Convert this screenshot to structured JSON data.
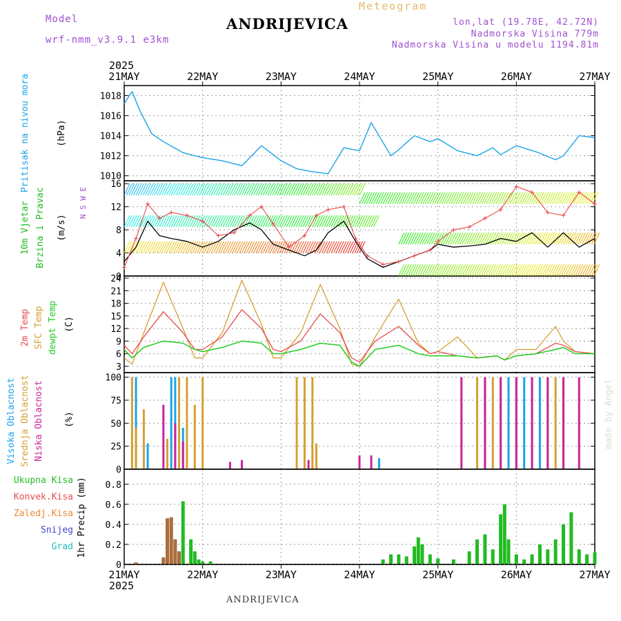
{
  "header": {
    "title": "ANDRIJEVICA",
    "subtitle": "Meteogram",
    "model_label": "Model",
    "model_name": "wrf-nmm_v3.9.1 e3km",
    "location": "lon,lat (19.78E, 42.72N)",
    "elevation": "Nadmorska Visina 779m",
    "model_elevation": "Nadmorska Visina u modelu 1194.81m",
    "footer": "ANDRIJEVICA",
    "credit": "made by Angel"
  },
  "colors": {
    "pressure": "#1aa3e8",
    "wind_label": "#22bb22",
    "wind_speed": "#000000",
    "gust": "#e84a4a",
    "temp2m": "#e84a4a",
    "sfc_temp": "#d4a030",
    "dewpt": "#22cc22",
    "cloud_high": "#1aa3e8",
    "cloud_mid": "#d4a030",
    "cloud_low": "#cc2299",
    "precip_total": "#22bb22",
    "precip_conv": "#e84a4a",
    "freezing_rain": "#ee8833",
    "snow": "#4444cc",
    "hail": "#22bbbb",
    "purple": "#a050d0"
  },
  "chart_data": [
    {
      "type": "line",
      "panel": "pressure",
      "year": "2025",
      "x_ticks": [
        "21MAY",
        "22MAY",
        "23MAY",
        "24MAY",
        "25MAY",
        "26MAY",
        "27MAY"
      ],
      "ylabel_side": "Pritisak na nivou mora",
      "unit": "(hPa)",
      "ylim": [
        1009.5,
        1019
      ],
      "y_ticks": [
        1010,
        1012,
        1014,
        1016,
        1018
      ],
      "series": [
        {
          "name": "Pritisak na nivou mora",
          "x_days": [
            0,
            0.1,
            0.2,
            0.35,
            0.5,
            0.75,
            1.0,
            1.25,
            1.5,
            1.75,
            2.0,
            2.2,
            2.4,
            2.6,
            2.8,
            3.0,
            3.15,
            3.4,
            3.5,
            3.7,
            3.9,
            4.0,
            4.25,
            4.5,
            4.7,
            4.8,
            5.0,
            5.25,
            5.5,
            5.6,
            5.75,
            5.8,
            6.0
          ],
          "values": [
            1017.2,
            1018.4,
            1016.5,
            1014.2,
            1013.4,
            1012.3,
            1011.8,
            1011.5,
            1011.0,
            1013.0,
            1011.5,
            1010.7,
            1010.4,
            1010.2,
            1012.8,
            1012.5,
            1015.3,
            1012.0,
            1012.6,
            1014.0,
            1013.4,
            1013.7,
            1012.5,
            1012.0,
            1012.8,
            1012.1,
            1013.0,
            1012.4,
            1011.6,
            1012.0,
            1013.5,
            1014.0,
            1013.8
          ]
        }
      ]
    },
    {
      "type": "line",
      "panel": "wind",
      "ylabel_side1": "10m Vjetar",
      "ylabel_side2": "Brzina i Pravac",
      "unit": "(m/s)",
      "compass_label": "N S W E",
      "ylim": [
        0,
        16.5
      ],
      "y_ticks": [
        0,
        4,
        8,
        12,
        16
      ],
      "series": [
        {
          "name": "Wind speed",
          "x_days": [
            0,
            0.15,
            0.3,
            0.45,
            0.6,
            0.8,
            1.0,
            1.2,
            1.4,
            1.6,
            1.75,
            1.9,
            2.1,
            2.3,
            2.45,
            2.6,
            2.8,
            2.95,
            3.1,
            3.3,
            3.5,
            3.7,
            3.9,
            4.0,
            4.2,
            4.4,
            4.6,
            4.8,
            5.0,
            5.2,
            5.4,
            5.6,
            5.8,
            6.0
          ],
          "values": [
            2.5,
            5.0,
            9.5,
            7.0,
            6.5,
            6.0,
            5.0,
            6.0,
            8.0,
            9.2,
            8.0,
            5.5,
            4.5,
            3.5,
            4.5,
            7.5,
            9.5,
            6.0,
            3.0,
            1.5,
            2.5,
            3.5,
            4.5,
            5.5,
            5.0,
            5.2,
            5.5,
            6.5,
            6.0,
            7.5,
            5.0,
            7.5,
            5.0,
            6.5
          ]
        },
        {
          "name": "Gust",
          "x_days": [
            0,
            0.15,
            0.3,
            0.45,
            0.6,
            0.8,
            1.0,
            1.2,
            1.4,
            1.6,
            1.75,
            1.9,
            2.1,
            2.3,
            2.45,
            2.6,
            2.8,
            2.95,
            3.1,
            3.3,
            3.5,
            3.7,
            3.9,
            4.0,
            4.2,
            4.4,
            4.6,
            4.8,
            5.0,
            5.2,
            5.4,
            5.6,
            5.8,
            6.0
          ],
          "values": [
            1.5,
            6.5,
            12.5,
            10.0,
            11.0,
            10.5,
            9.5,
            7.0,
            7.5,
            10.5,
            12.0,
            9.0,
            5.0,
            7.0,
            10.5,
            11.5,
            12.0,
            6.5,
            3.5,
            2.0,
            2.5,
            3.5,
            4.5,
            6.0,
            8.0,
            8.5,
            10.0,
            11.5,
            15.5,
            14.5,
            11.0,
            10.5,
            14.5,
            12.5
          ]
        }
      ]
    },
    {
      "type": "line",
      "panel": "temperature",
      "ylabel_side": [
        "2m Temp",
        "SFC Temp",
        "dewpt Temp"
      ],
      "unit": "(C)",
      "ylim": [
        1.5,
        24.5
      ],
      "y_ticks": [
        3,
        6,
        9,
        12,
        15,
        18,
        21,
        24
      ],
      "series": [
        {
          "name": "2m Temp",
          "x_days": [
            0,
            0.1,
            0.25,
            0.5,
            0.75,
            0.9,
            1.0,
            1.25,
            1.5,
            1.75,
            1.9,
            2.0,
            2.25,
            2.5,
            2.75,
            2.9,
            3.0,
            3.2,
            3.5,
            3.75,
            3.9,
            4.0,
            4.25,
            4.5,
            4.75,
            4.85,
            5.0,
            5.25,
            5.5,
            5.6,
            5.75,
            6.0
          ],
          "values": [
            8,
            6,
            10,
            16,
            11,
            7,
            7,
            10,
            16.5,
            12,
            7,
            6.5,
            9,
            15.5,
            11,
            5,
            4,
            9,
            12.5,
            8,
            6,
            6.5,
            5.5,
            5,
            5.5,
            4.5,
            5.5,
            6,
            8.5,
            8,
            6.5,
            6
          ]
        },
        {
          "name": "SFC Temp",
          "x_days": [
            0,
            0.1,
            0.25,
            0.5,
            0.75,
            0.9,
            1.0,
            1.25,
            1.5,
            1.75,
            1.9,
            2.0,
            2.25,
            2.5,
            2.75,
            2.9,
            3.0,
            3.2,
            3.5,
            3.75,
            3.9,
            4.0,
            4.25,
            4.5,
            4.75,
            4.85,
            5.0,
            5.25,
            5.5,
            5.6,
            5.75,
            6.0
          ],
          "values": [
            5,
            3.5,
            11,
            23,
            12,
            5,
            5,
            11,
            23.5,
            13,
            5,
            5,
            11,
            22.5,
            12,
            3.5,
            3,
            10,
            19,
            8.5,
            6,
            6.5,
            10,
            5,
            5.5,
            4.5,
            7,
            7,
            12.5,
            9,
            6.5,
            6
          ]
        },
        {
          "name": "dewpt Temp",
          "x_days": [
            0,
            0.1,
            0.25,
            0.5,
            0.75,
            0.9,
            1.0,
            1.25,
            1.5,
            1.75,
            1.9,
            2.0,
            2.25,
            2.5,
            2.75,
            2.9,
            3.0,
            3.2,
            3.5,
            3.75,
            3.9,
            4.0,
            4.25,
            4.5,
            4.75,
            4.85,
            5.0,
            5.25,
            5.5,
            5.6,
            5.75,
            6.0
          ],
          "values": [
            7,
            5,
            7.5,
            9,
            8.5,
            7,
            6.5,
            7.5,
            9,
            8.5,
            6,
            6,
            7,
            8.5,
            8,
            4,
            3,
            7,
            8,
            6,
            5.5,
            5.5,
            5.5,
            5,
            5.5,
            4.5,
            5.5,
            6,
            7,
            7.5,
            6,
            6
          ]
        }
      ]
    },
    {
      "type": "bar",
      "panel": "clouds",
      "ylabel_side": [
        "Visoka Oblacnost",
        "Srednja Oblacnost",
        "Niska Oblacnost"
      ],
      "unit": "(%)",
      "ylim": [
        0,
        105
      ],
      "y_ticks": [
        0,
        25,
        50,
        75,
        100
      ],
      "series": [
        {
          "name": "Visoka Oblacnost",
          "x_days": [
            0.15,
            0.3,
            0.6,
            0.65,
            0.75,
            3.25,
            4.9,
            5.1,
            5.3,
            5.6
          ],
          "values": [
            100,
            28,
            100,
            100,
            45,
            12,
            100,
            100,
            100,
            100
          ]
        },
        {
          "name": "Srednja Oblacnost",
          "x_days": [
            0.1,
            0.15,
            0.25,
            0.55,
            0.7,
            0.8,
            0.9,
            1.0,
            2.2,
            2.3,
            2.4,
            2.45,
            4.5,
            4.6,
            4.7,
            4.8,
            5.0,
            5.2,
            5.4,
            5.5
          ],
          "values": [
            100,
            45,
            65,
            33,
            100,
            100,
            70,
            100,
            100,
            100,
            100,
            28,
            100,
            100,
            100,
            100,
            100,
            100,
            100,
            100
          ]
        },
        {
          "name": "Niska Oblacnost",
          "x_days": [
            0.5,
            0.65,
            0.75,
            1.35,
            1.5,
            2.35,
            3.0,
            3.15,
            4.3,
            4.6,
            4.8,
            5.0,
            5.2,
            5.4,
            5.6,
            5.8
          ],
          "values": [
            70,
            50,
            30,
            8,
            10,
            10,
            15,
            15,
            100,
            100,
            100,
            100,
            100,
            100,
            100,
            100
          ]
        }
      ]
    },
    {
      "type": "bar",
      "panel": "precip",
      "ylabel_side": [
        "Ukupna Kisa",
        "Konvek.Kisa",
        "Zaledj.Kisa",
        "Snijeg",
        "Grad"
      ],
      "unit": "1hr Precip (mm)",
      "ylim": [
        0,
        0.95
      ],
      "y_ticks": [
        0,
        0.2,
        0.4,
        0.6,
        0.8
      ],
      "series": [
        {
          "name": "Ukupna Kisa",
          "x_days": [
            0.15,
            0.5,
            0.55,
            0.6,
            0.65,
            0.7,
            0.75,
            0.85,
            0.9,
            0.95,
            1.0,
            1.1,
            3.3,
            3.4,
            3.5,
            3.6,
            3.7,
            3.75,
            3.8,
            3.9,
            4.0,
            4.2,
            4.4,
            4.5,
            4.6,
            4.7,
            4.8,
            4.85,
            4.9,
            5.0,
            5.1,
            5.2,
            5.3,
            5.4,
            5.5,
            5.6,
            5.7,
            5.8,
            5.9,
            6.0
          ],
          "values": [
            0.02,
            0.07,
            0.46,
            0.47,
            0.25,
            0.13,
            0.63,
            0.25,
            0.13,
            0.05,
            0.03,
            0.03,
            0.05,
            0.1,
            0.1,
            0.08,
            0.18,
            0.27,
            0.2,
            0.1,
            0.06,
            0.05,
            0.13,
            0.25,
            0.3,
            0.15,
            0.5,
            0.6,
            0.25,
            0.1,
            0.05,
            0.1,
            0.2,
            0.15,
            0.25,
            0.4,
            0.52,
            0.15,
            0.1,
            0.12
          ]
        },
        {
          "name": "Konvek.Kisa",
          "x_days": [
            0.15,
            0.5,
            0.55,
            0.6,
            0.65,
            0.7
          ],
          "values": [
            0.02,
            0.07,
            0.46,
            0.47,
            0.25,
            0.13
          ]
        }
      ]
    }
  ]
}
